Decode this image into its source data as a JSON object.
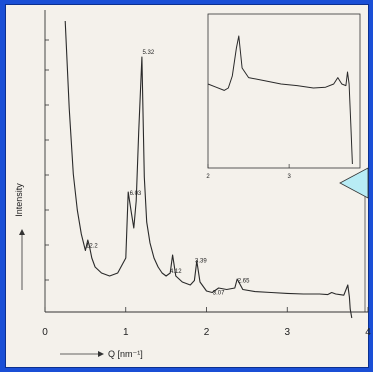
{
  "chart_data": [
    {
      "type": "line",
      "xlabel": "Q [nm⁻¹]",
      "ylabel": "Intensity",
      "xlim": [
        0,
        4
      ],
      "x_ticks": [
        "0",
        "1",
        "2",
        "3",
        "4"
      ],
      "series": [
        {
          "x": [
            0.25,
            0.3,
            0.35,
            0.4,
            0.45,
            0.5,
            0.53,
            0.55,
            0.58,
            0.62,
            0.7,
            0.8,
            0.9,
            1.0,
            1.03,
            1.07,
            1.1,
            1.13,
            1.16,
            1.2,
            1.23,
            1.26,
            1.3,
            1.35,
            1.4,
            1.45,
            1.5,
            1.55,
            1.58,
            1.62,
            1.7,
            1.8,
            1.85,
            1.88,
            1.92,
            2.0,
            2.07,
            2.15,
            2.25,
            2.35,
            2.38,
            2.45,
            2.6,
            2.8,
            3.0,
            3.2,
            3.4,
            3.5,
            3.55,
            3.6,
            3.65,
            3.7,
            3.75,
            3.77,
            3.78,
            3.8
          ],
          "y": [
            990,
            700,
            480,
            360,
            280,
            225,
            260,
            240,
            200,
            170,
            150,
            140,
            150,
            200,
            420,
            350,
            300,
            390,
            620,
            870,
            470,
            320,
            250,
            200,
            170,
            150,
            140,
            150,
            210,
            140,
            120,
            110,
            125,
            190,
            120,
            90,
            85,
            100,
            95,
            100,
            130,
            95,
            88,
            85,
            82,
            80,
            80,
            78,
            85,
            80,
            78,
            76,
            110,
            70,
            30,
            0
          ]
        }
      ],
      "annotations": [
        "12.2",
        "6.03",
        "5.32",
        "4.12",
        "3.39",
        "3.07",
        "2.65"
      ]
    },
    {
      "type": "line",
      "xlim": [
        2,
        3.8
      ],
      "x_ticks": [
        "2",
        "3"
      ],
      "series": [
        {
          "x": [
            2.0,
            2.1,
            2.2,
            2.25,
            2.3,
            2.35,
            2.38,
            2.42,
            2.5,
            2.7,
            2.9,
            3.1,
            3.3,
            3.45,
            3.55,
            3.6,
            3.65,
            3.7,
            3.72,
            3.74,
            3.76,
            3.78
          ],
          "y": [
            100,
            96,
            92,
            95,
            110,
            145,
            160,
            120,
            108,
            104,
            100,
            98,
            95,
            96,
            100,
            108,
            100,
            98,
            115,
            100,
            50,
            0
          ]
        }
      ]
    }
  ]
}
